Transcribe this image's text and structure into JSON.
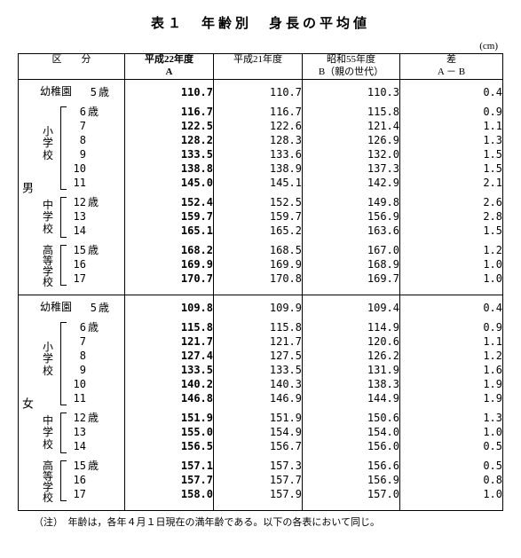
{
  "title": "表１　年齢別　身長の平均値",
  "unit": "(cm)",
  "header": {
    "c1": "区　　分",
    "c2a": "平成22年度",
    "c2b": "A",
    "c3": "平成21年度",
    "c4a": "昭和55年度",
    "c4b": "B（親の世代）",
    "c5a": "差",
    "c5b": "A － B"
  },
  "sex": {
    "m": "男",
    "f": "女"
  },
  "school": {
    "yo": "幼稚園",
    "es": "小学校",
    "jh": "中学校",
    "hs": "高等学校"
  },
  "ages": {
    "yo": [
      "5"
    ],
    "es": [
      "6",
      "7",
      "8",
      "9",
      "10",
      "11"
    ],
    "jh": [
      "12",
      "13",
      "14"
    ],
    "hs": [
      "15",
      "16",
      "17"
    ]
  },
  "sai": "歳",
  "male": {
    "A": [
      "110.7",
      "116.7",
      "122.5",
      "128.2",
      "133.5",
      "138.8",
      "145.0",
      "152.4",
      "159.7",
      "165.1",
      "168.2",
      "169.9",
      "170.7"
    ],
    "P": [
      "110.7",
      "116.7",
      "122.6",
      "128.3",
      "133.6",
      "138.9",
      "145.1",
      "152.5",
      "159.7",
      "165.2",
      "168.5",
      "169.9",
      "170.8"
    ],
    "B": [
      "110.3",
      "115.8",
      "121.4",
      "126.9",
      "132.0",
      "137.3",
      "142.9",
      "149.8",
      "156.9",
      "163.6",
      "167.0",
      "168.9",
      "169.7"
    ],
    "D": [
      "0.4",
      "0.9",
      "1.1",
      "1.3",
      "1.5",
      "1.5",
      "2.1",
      "2.6",
      "2.8",
      "1.5",
      "1.2",
      "1.0",
      "1.0"
    ]
  },
  "female": {
    "A": [
      "109.8",
      "115.8",
      "121.7",
      "127.4",
      "133.5",
      "140.2",
      "146.8",
      "151.9",
      "155.0",
      "156.5",
      "157.1",
      "157.7",
      "158.0"
    ],
    "P": [
      "109.9",
      "115.8",
      "121.7",
      "127.5",
      "133.5",
      "140.3",
      "146.9",
      "151.9",
      "154.9",
      "156.7",
      "157.3",
      "157.7",
      "157.9"
    ],
    "B": [
      "109.4",
      "114.9",
      "120.6",
      "126.2",
      "131.9",
      "138.3",
      "144.9",
      "150.6",
      "154.0",
      "156.0",
      "156.6",
      "156.9",
      "157.0"
    ],
    "D": [
      "0.4",
      "0.9",
      "1.1",
      "1.2",
      "1.6",
      "1.9",
      "1.9",
      "1.3",
      "1.0",
      "0.5",
      "0.5",
      "0.8",
      "1.0"
    ]
  },
  "footnote": "（注）　年齢は，各年４月１日現在の満年齢である。以下の各表において同じ。"
}
